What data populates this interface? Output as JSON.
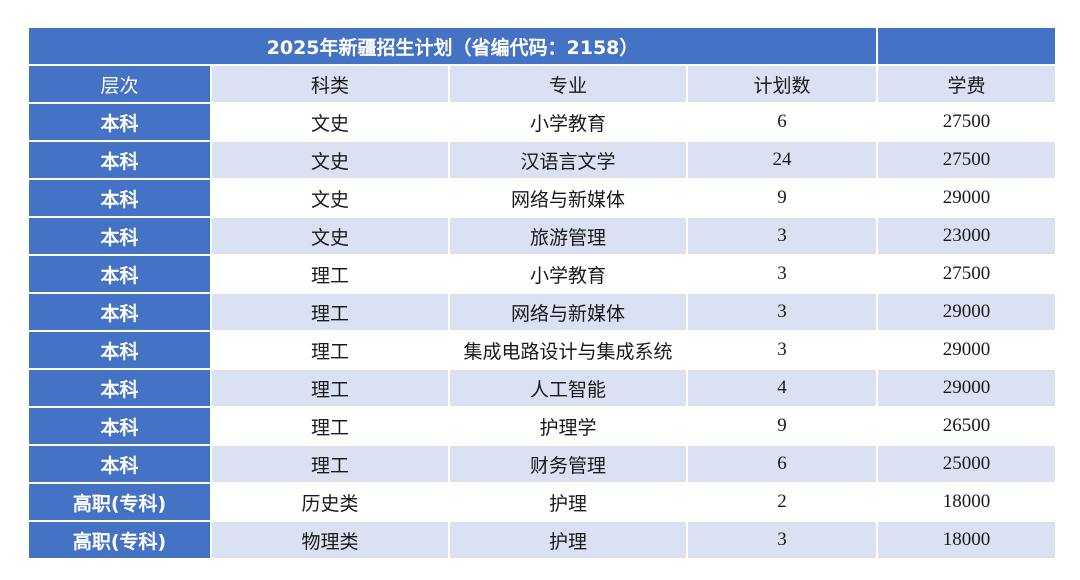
{
  "table": {
    "title": "2025年新疆招生计划（省编代码：2158）",
    "headers": [
      "层次",
      "科类",
      "专业",
      "计划数",
      "学费"
    ],
    "rows": [
      [
        "本科",
        "文史",
        "小学教育",
        "6",
        "27500"
      ],
      [
        "本科",
        "文史",
        "汉语言文学",
        "24",
        "27500"
      ],
      [
        "本科",
        "文史",
        "网络与新媒体",
        "9",
        "29000"
      ],
      [
        "本科",
        "文史",
        "旅游管理",
        "3",
        "23000"
      ],
      [
        "本科",
        "理工",
        "小学教育",
        "3",
        "27500"
      ],
      [
        "本科",
        "理工",
        "网络与新媒体",
        "3",
        "29000"
      ],
      [
        "本科",
        "理工",
        "集成电路设计与集成系统",
        "3",
        "29000"
      ],
      [
        "本科",
        "理工",
        "人工智能",
        "4",
        "29000"
      ],
      [
        "本科",
        "理工",
        "护理学",
        "9",
        "26500"
      ],
      [
        "本科",
        "理工",
        "财务管理",
        "6",
        "25000"
      ],
      [
        "高职(专科)",
        "历史类",
        "护理",
        "2",
        "18000"
      ],
      [
        "高职(专科)",
        "物理类",
        "护理",
        "3",
        "18000"
      ]
    ]
  },
  "colors": {
    "header_blue": "#4472c4",
    "band_light": "#d9e1f2",
    "band_white": "#ffffff"
  }
}
